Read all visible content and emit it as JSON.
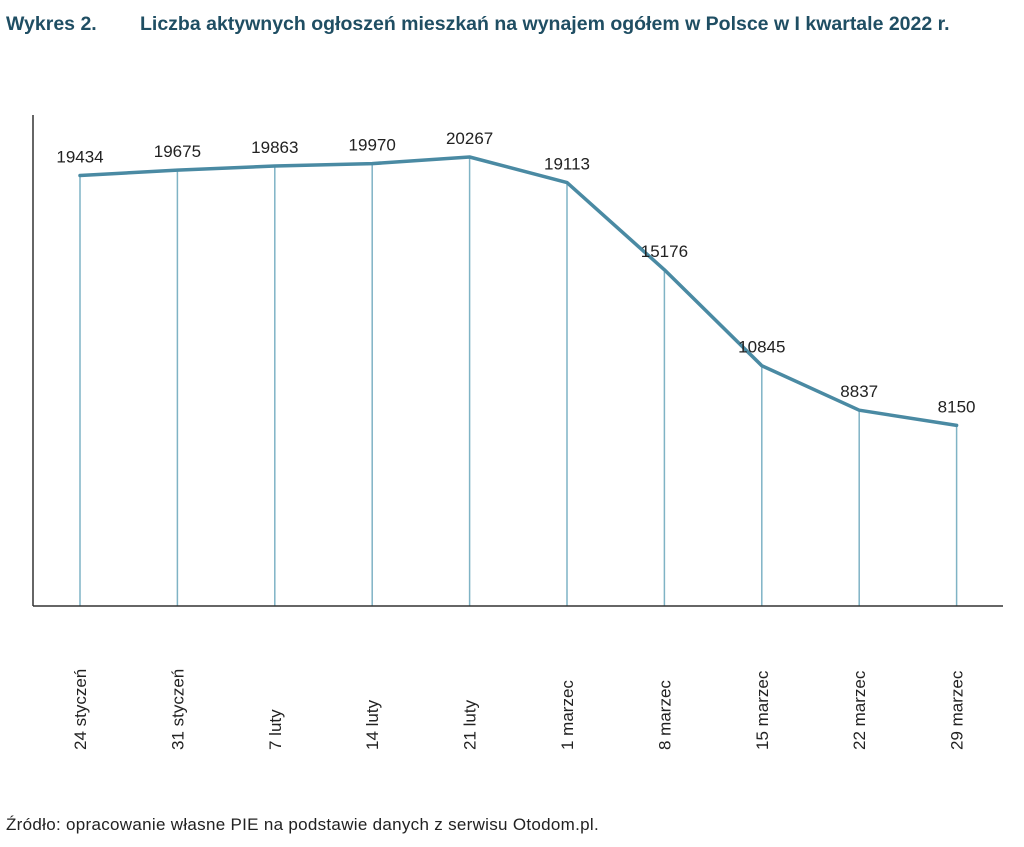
{
  "figure": {
    "label": "Wykres 2.",
    "title": "Liczba aktywnych ogłoszeń mieszkań na wynajem ogółem w Polsce w I kwartale 2022 r.",
    "source": "Źródło: opracowanie własne PIE na podstawie danych z serwisu Otodom.pl."
  },
  "colors": {
    "title": "#1f4e63",
    "line": "#4a8aa3",
    "drop_line": "#7fb3c5",
    "axis": "#333333",
    "text": "#222222"
  },
  "chart_data": {
    "type": "line",
    "title": "Liczba aktywnych ogłoszeń mieszkań na wynajem ogółem w Polsce w I kwartale 2022 r.",
    "xlabel": "",
    "ylabel": "",
    "categories": [
      "24 styczeń",
      "31 styczeń",
      "7 luty",
      "14 luty",
      "21 luty",
      "1 marzec",
      "8 marzec",
      "15 marzec",
      "22 marzec",
      "29 marzec"
    ],
    "values": [
      19434,
      19675,
      19863,
      19970,
      20267,
      19113,
      15176,
      10845,
      8837,
      8150
    ],
    "ylim": [
      0,
      20267
    ],
    "grid": false,
    "legend": "none",
    "data_labels": true,
    "x_tick_rotation": -90
  }
}
